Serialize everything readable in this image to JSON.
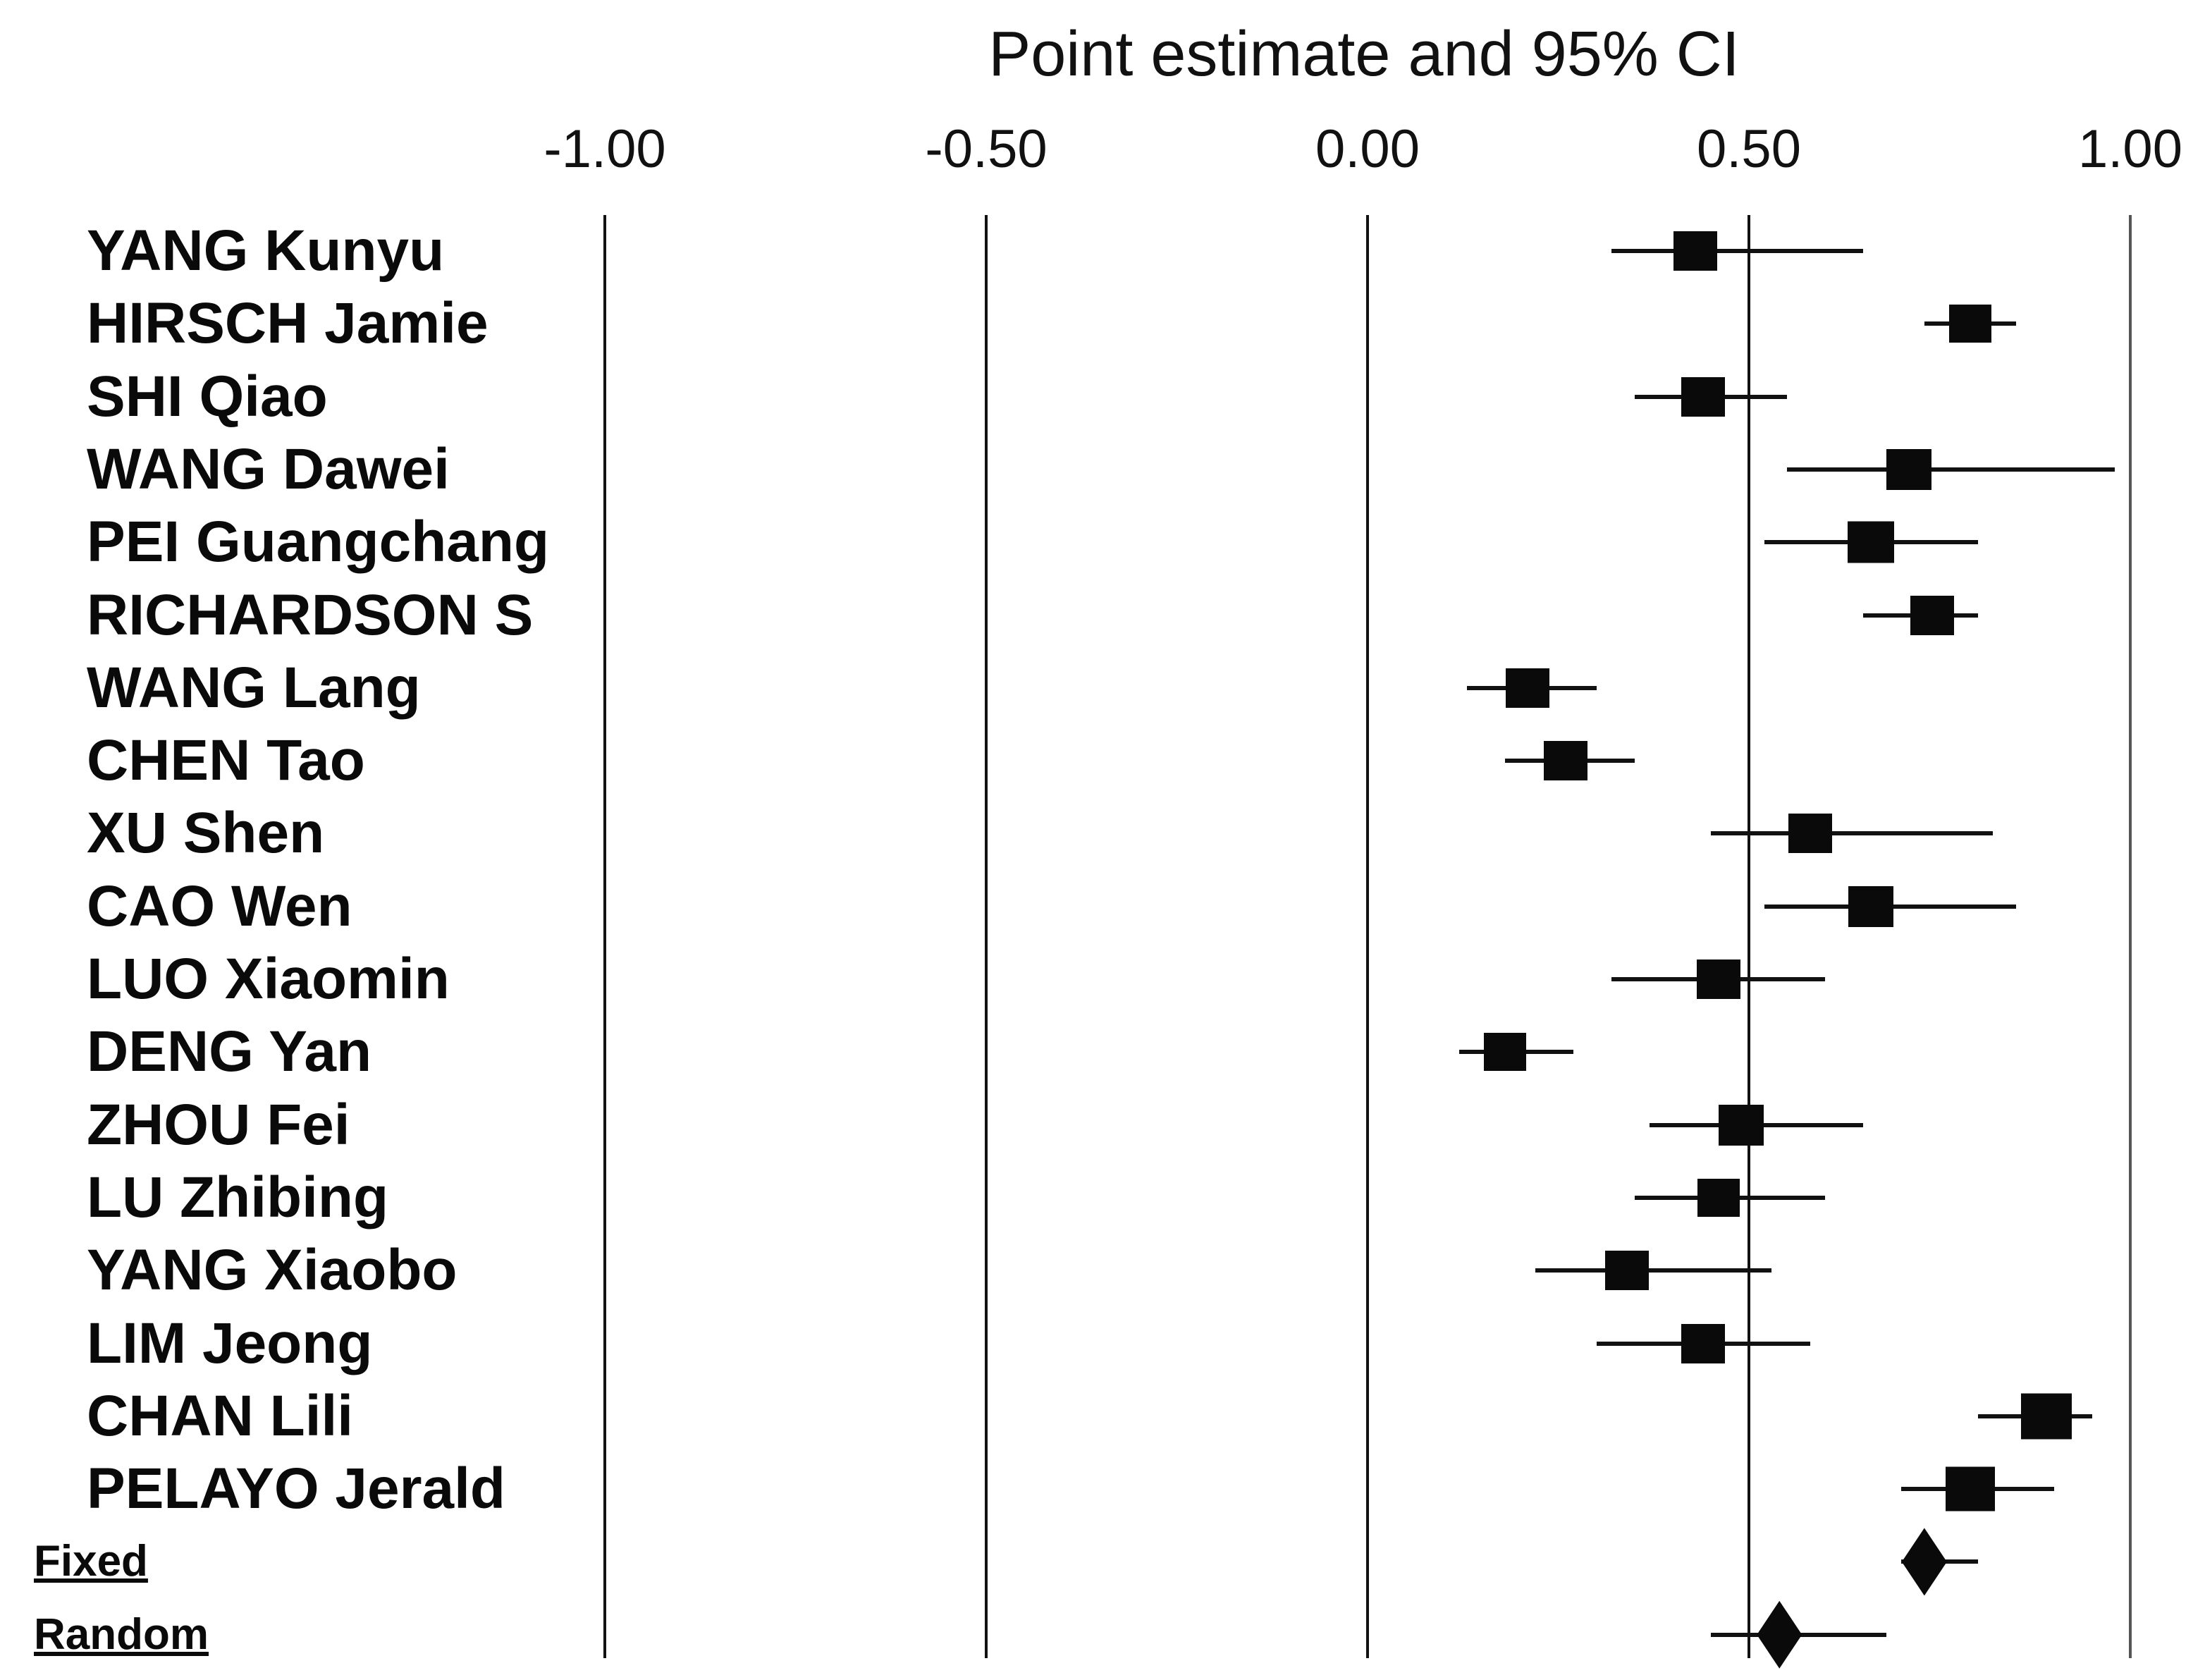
{
  "chart_data": {
    "type": "forest",
    "title": "Point estimate and 95% CI",
    "x_axis": {
      "min": -1.0,
      "max": 1.0,
      "ticks": [
        {
          "value": -1.0,
          "label": "-1.00"
        },
        {
          "value": -0.5,
          "label": "-0.50"
        },
        {
          "value": 0.0,
          "label": "0.00"
        },
        {
          "value": 0.5,
          "label": "0.50"
        },
        {
          "value": 1.0,
          "label": "1.00"
        }
      ],
      "gridlines": true
    },
    "studies": [
      {
        "label": "YANG Kunyu",
        "estimate": 0.43,
        "ci_lower": 0.32,
        "ci_upper": 0.65,
        "size": 62
      },
      {
        "label": "HIRSCH Jamie",
        "estimate": 0.79,
        "ci_lower": 0.73,
        "ci_upper": 0.85,
        "size": 60
      },
      {
        "label": "SHI Qiao",
        "estimate": 0.44,
        "ci_lower": 0.35,
        "ci_upper": 0.55,
        "size": 62
      },
      {
        "label": "WANG Dawei",
        "estimate": 0.71,
        "ci_lower": 0.55,
        "ci_upper": 0.98,
        "size": 64
      },
      {
        "label": "PEI Guangchang",
        "estimate": 0.66,
        "ci_lower": 0.52,
        "ci_upper": 0.8,
        "size": 66
      },
      {
        "label": "RICHARDSON S",
        "estimate": 0.74,
        "ci_lower": 0.65,
        "ci_upper": 0.8,
        "size": 62
      },
      {
        "label": "WANG Lang",
        "estimate": 0.21,
        "ci_lower": 0.13,
        "ci_upper": 0.3,
        "size": 62
      },
      {
        "label": "CHEN Tao",
        "estimate": 0.26,
        "ci_lower": 0.18,
        "ci_upper": 0.35,
        "size": 62
      },
      {
        "label": "XU Shen",
        "estimate": 0.58,
        "ci_lower": 0.45,
        "ci_upper": 0.82,
        "size": 62
      },
      {
        "label": "CAO Wen",
        "estimate": 0.66,
        "ci_lower": 0.52,
        "ci_upper": 0.85,
        "size": 64
      },
      {
        "label": "LUO Xiaomin",
        "estimate": 0.46,
        "ci_lower": 0.32,
        "ci_upper": 0.6,
        "size": 62
      },
      {
        "label": "DENG Yan",
        "estimate": 0.18,
        "ci_lower": 0.12,
        "ci_upper": 0.27,
        "size": 60
      },
      {
        "label": "ZHOU Fei",
        "estimate": 0.49,
        "ci_lower": 0.37,
        "ci_upper": 0.65,
        "size": 64
      },
      {
        "label": "LU Zhibing",
        "estimate": 0.46,
        "ci_lower": 0.35,
        "ci_upper": 0.6,
        "size": 60
      },
      {
        "label": "YANG Xiaobo",
        "estimate": 0.34,
        "ci_lower": 0.22,
        "ci_upper": 0.53,
        "size": 62
      },
      {
        "label": "LIM Jeong",
        "estimate": 0.44,
        "ci_lower": 0.3,
        "ci_upper": 0.58,
        "size": 62
      },
      {
        "label": "CHAN Lili",
        "estimate": 0.89,
        "ci_lower": 0.8,
        "ci_upper": 0.95,
        "size": 72
      },
      {
        "label": "PELAYO Jerald",
        "estimate": 0.79,
        "ci_lower": 0.7,
        "ci_upper": 0.9,
        "size": 70
      }
    ],
    "pooled": [
      {
        "label": "Fixed",
        "estimate": 0.73,
        "ci_lower": 0.7,
        "ci_upper": 0.8,
        "marker": "diamond"
      },
      {
        "label": "Random",
        "estimate": 0.54,
        "ci_lower": 0.45,
        "ci_upper": 0.68,
        "marker": "diamond"
      }
    ],
    "legend_position": "none",
    "colors": {
      "marker": "#0a0a0a",
      "ci_line": "#111111",
      "gridline": "#111111",
      "gridline_far_right": "#555555",
      "background": "#ffffff"
    }
  }
}
